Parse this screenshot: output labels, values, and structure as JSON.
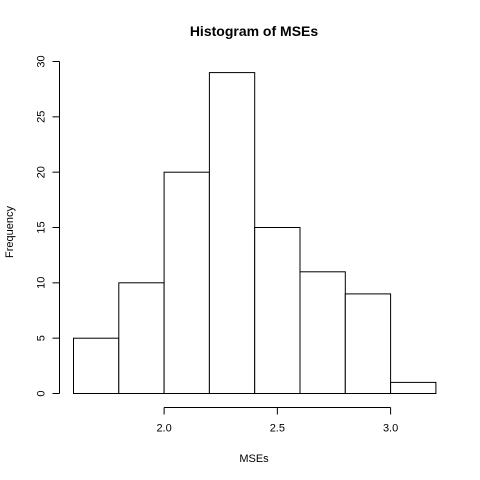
{
  "chart_data": {
    "type": "bar",
    "title": "Histogram of MSEs",
    "xlabel": "MSEs",
    "ylabel": "Frequency",
    "bins": [
      {
        "start": 1.6,
        "end": 1.8,
        "count": 5
      },
      {
        "start": 1.8,
        "end": 2.0,
        "count": 10
      },
      {
        "start": 2.0,
        "end": 2.2,
        "count": 20
      },
      {
        "start": 2.2,
        "end": 2.4,
        "count": 29
      },
      {
        "start": 2.4,
        "end": 2.6,
        "count": 15
      },
      {
        "start": 2.6,
        "end": 2.8,
        "count": 11
      },
      {
        "start": 2.8,
        "end": 3.0,
        "count": 9
      },
      {
        "start": 3.0,
        "end": 3.2,
        "count": 1
      }
    ],
    "x_ticks": [
      {
        "value": 2.0,
        "label": "2.0"
      },
      {
        "value": 2.5,
        "label": "2.5"
      },
      {
        "value": 3.0,
        "label": "3.0"
      }
    ],
    "y_ticks": [
      {
        "value": 0,
        "label": "0"
      },
      {
        "value": 5,
        "label": "5"
      },
      {
        "value": 10,
        "label": "10"
      },
      {
        "value": 15,
        "label": "15"
      },
      {
        "value": 20,
        "label": "20"
      },
      {
        "value": 25,
        "label": "25"
      },
      {
        "value": 30,
        "label": "30"
      }
    ],
    "xlim": [
      1.6,
      3.2
    ],
    "ylim": [
      0,
      30
    ],
    "grid": false,
    "legend": "none",
    "colors": {
      "bar_fill": "#ffffff",
      "bar_stroke": "#000000"
    }
  }
}
